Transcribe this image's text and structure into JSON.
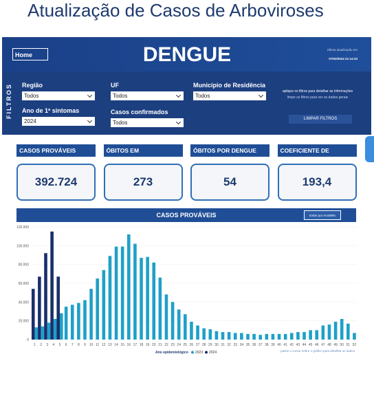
{
  "page_title": "Atualização de Casos de Arboviroses",
  "header": {
    "home": "Home",
    "title": "DENGUE",
    "update_label": "Última atualização em",
    "update_time": "07/02/2024 21:14:23"
  },
  "filters": {
    "label": "FILTROS",
    "fields": [
      {
        "label": "Região",
        "value": "Todos"
      },
      {
        "label": "UF",
        "value": "Todos"
      },
      {
        "label": "Município de Residência",
        "value": "Todos"
      },
      {
        "label": "Ano de 1º sintomas",
        "value": "2024"
      },
      {
        "label": "Casos confirmados",
        "value": "Todos"
      }
    ],
    "hint1": "aplique os filtros para detalhar as informações",
    "hint2": "limpe os filtros para ver os dados gerais",
    "clear_button": "LIMPAR FILTROS"
  },
  "kpis": [
    {
      "label": "CASOS PROVÁVEIS",
      "value": "392.724"
    },
    {
      "label": "ÓBITOS EM INVESTIGAÇÃO",
      "value": "273"
    },
    {
      "label": "ÓBITOS POR DENGUE",
      "value": "54"
    },
    {
      "label": "COEFICIENTE DE INCIDÊNCIA",
      "value": "193,4"
    }
  ],
  "chart_data": {
    "type": "bar",
    "title": "CASOS PROVÁVEIS",
    "toggle": "Exibir por Ano/Mês",
    "legend_title": "Ano epidemiológico",
    "note": "passe o cursor sobre o gráfico para detalhar os dados",
    "categories": [
      "1",
      "2",
      "3",
      "4",
      "5",
      "6",
      "7",
      "8",
      "9",
      "10",
      "11",
      "12",
      "13",
      "14",
      "15",
      "16",
      "17",
      "18",
      "19",
      "20",
      "21",
      "22",
      "23",
      "24",
      "25",
      "26",
      "27",
      "28",
      "29",
      "30",
      "31",
      "32",
      "33",
      "34",
      "35",
      "36",
      "37",
      "38",
      "39",
      "40",
      "41",
      "42",
      "43",
      "44",
      "45",
      "46",
      "47",
      "48",
      "49",
      "50",
      "51",
      "52"
    ],
    "series": [
      {
        "name": "2024",
        "color": "#1a2f6b",
        "values": [
          54000,
          67000,
          92000,
          115000,
          67000,
          null,
          null,
          null,
          null,
          null,
          null,
          null,
          null,
          null,
          null,
          null,
          null,
          null,
          null,
          null,
          null,
          null,
          null,
          null,
          null,
          null,
          null,
          null,
          null,
          null,
          null,
          null,
          null,
          null,
          null,
          null,
          null,
          null,
          null,
          null,
          null,
          null,
          null,
          null,
          null,
          null,
          null,
          null,
          null,
          null,
          null,
          null
        ]
      },
      {
        "name": "2023",
        "color": "#1fa0c8",
        "values": [
          13000,
          14000,
          18000,
          22000,
          28000,
          35000,
          37000,
          39000,
          42000,
          54000,
          65000,
          74000,
          89000,
          99000,
          99000,
          112000,
          102000,
          87000,
          88000,
          82000,
          66000,
          48000,
          40000,
          32000,
          27000,
          19000,
          15000,
          12000,
          11000,
          9000,
          8000,
          8000,
          7000,
          7000,
          6000,
          6000,
          5000,
          6000,
          6000,
          6000,
          6000,
          7000,
          8000,
          8000,
          10000,
          10000,
          15000,
          16000,
          19000,
          22000,
          17000,
          7000
        ]
      }
    ],
    "ylim": [
      0,
      120000
    ],
    "yticks": [
      0,
      {
        "value": 20000,
        "label": "20.000"
      },
      {
        "value": 40000,
        "label": "40.000"
      },
      {
        "value": 60000,
        "label": "60.000"
      },
      {
        "value": 80000,
        "label": "80.000"
      },
      {
        "value": 100000,
        "label": "100.000"
      },
      {
        "value": 120000,
        "label": "120.000"
      }
    ],
    "grid": true
  }
}
